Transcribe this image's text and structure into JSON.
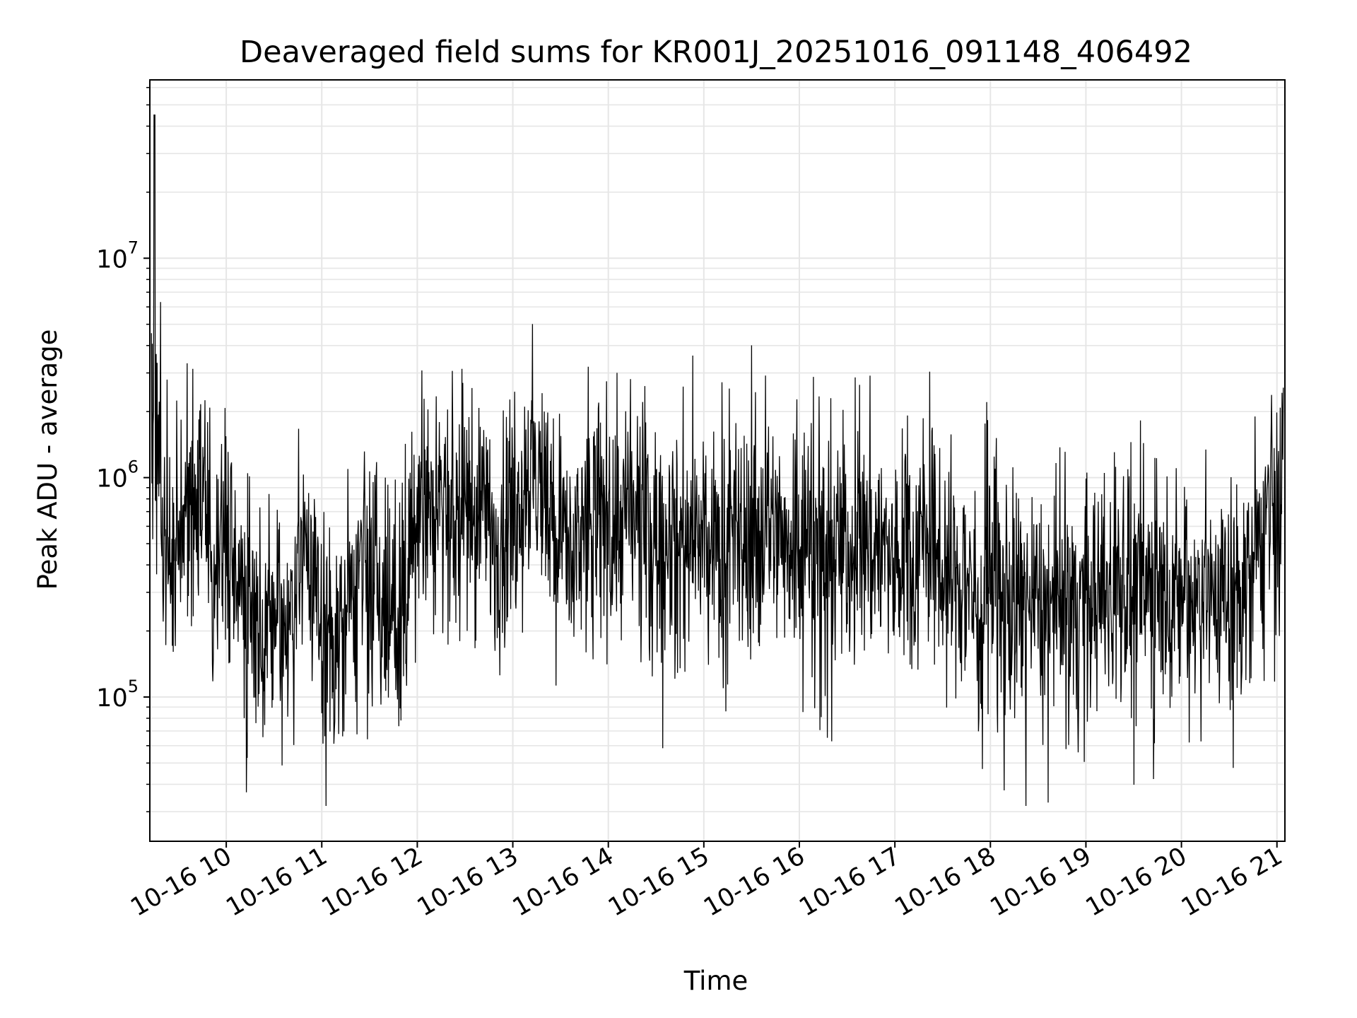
{
  "chart_data": {
    "type": "line",
    "title": "Deaveraged field sums for KR001J_20251016_091148_406492",
    "xlabel": "Time",
    "ylabel": "Peak ADU - average",
    "y_scale": "log",
    "ylim": [
      22000,
      65000000
    ],
    "xlim": [
      "2025-10-16 09:12",
      "2025-10-16 21:05"
    ],
    "grid": true,
    "line_color": "#000000",
    "x_ticks": [
      "10-16 10",
      "10-16 11",
      "10-16 12",
      "10-16 13",
      "10-16 14",
      "10-16 15",
      "10-16 16",
      "10-16 17",
      "10-16 18",
      "10-16 19",
      "10-16 20",
      "10-16 21"
    ],
    "y_ticks": [
      {
        "base": "10",
        "exp": "5"
      },
      {
        "base": "10",
        "exp": "6"
      },
      {
        "base": "10",
        "exp": "7"
      }
    ],
    "series": [
      {
        "x": [
          "2025-10-16 09:12",
          "2025-10-16 09:15",
          "2025-10-16 09:20",
          "2025-10-16 09:30",
          "2025-10-16 09:40",
          "2025-10-16 09:50",
          "2025-10-16 10:00",
          "2025-10-16 10:10",
          "2025-10-16 10:20",
          "2025-10-16 10:30",
          "2025-10-16 10:40",
          "2025-10-16 10:50",
          "2025-10-16 11:00",
          "2025-10-16 11:10",
          "2025-10-16 11:20",
          "2025-10-16 11:30",
          "2025-10-16 11:40",
          "2025-10-16 11:50",
          "2025-10-16 12:00",
          "2025-10-16 12:10",
          "2025-10-16 12:20",
          "2025-10-16 12:30",
          "2025-10-16 12:40",
          "2025-10-16 12:50",
          "2025-10-16 13:00",
          "2025-10-16 13:10",
          "2025-10-16 13:20",
          "2025-10-16 13:30",
          "2025-10-16 13:40",
          "2025-10-16 13:50",
          "2025-10-16 14:00",
          "2025-10-16 14:10",
          "2025-10-16 14:20",
          "2025-10-16 14:30",
          "2025-10-16 14:40",
          "2025-10-16 14:50",
          "2025-10-16 15:00",
          "2025-10-16 15:10",
          "2025-10-16 15:20",
          "2025-10-16 15:30",
          "2025-10-16 15:40",
          "2025-10-16 15:50",
          "2025-10-16 16:00",
          "2025-10-16 16:10",
          "2025-10-16 16:20",
          "2025-10-16 16:30",
          "2025-10-16 16:40",
          "2025-10-16 16:50",
          "2025-10-16 17:00",
          "2025-10-16 17:10",
          "2025-10-16 17:20",
          "2025-10-16 17:30",
          "2025-10-16 17:40",
          "2025-10-16 17:50",
          "2025-10-16 18:00",
          "2025-10-16 18:10",
          "2025-10-16 18:20",
          "2025-10-16 18:30",
          "2025-10-16 18:40",
          "2025-10-16 18:50",
          "2025-10-16 19:00",
          "2025-10-16 19:10",
          "2025-10-16 19:20",
          "2025-10-16 19:30",
          "2025-10-16 19:40",
          "2025-10-16 19:50",
          "2025-10-16 20:00",
          "2025-10-16 20:10",
          "2025-10-16 20:20",
          "2025-10-16 20:30",
          "2025-10-16 20:40",
          "2025-10-16 20:50",
          "2025-10-16 21:00",
          "2025-10-16 21:05"
        ],
        "y": [
          700000,
          45000000,
          550000,
          400000,
          950000,
          500000,
          600000,
          300000,
          200000,
          220000,
          250000,
          550000,
          200000,
          180000,
          300000,
          350000,
          250000,
          200000,
          850000,
          800000,
          700000,
          650000,
          650000,
          550000,
          700000,
          1050000,
          900000,
          550000,
          450000,
          700000,
          550000,
          650000,
          650000,
          500000,
          520000,
          450000,
          480000,
          420000,
          480000,
          520000,
          620000,
          520000,
          580000,
          520000,
          480000,
          480000,
          500000,
          520000,
          380000,
          480000,
          500000,
          420000,
          320000,
          300000,
          280000,
          270000,
          260000,
          250000,
          240000,
          250000,
          280000,
          280000,
          300000,
          280000,
          320000,
          280000,
          280000,
          320000,
          300000,
          280000,
          320000,
          520000,
          650000,
          800000
        ]
      }
    ]
  }
}
